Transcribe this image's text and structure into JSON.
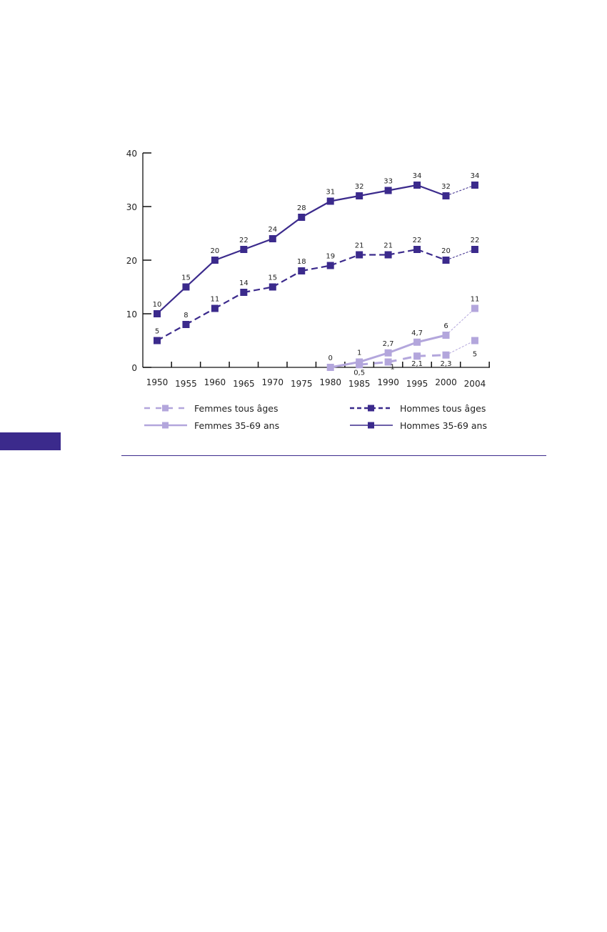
{
  "chart_data": {
    "type": "line",
    "title": "",
    "xlabel": "",
    "ylabel": "",
    "ylim": [
      0,
      40
    ],
    "yticks": [
      "0",
      "10",
      "20",
      "30",
      "40"
    ],
    "categories": [
      "1950",
      "1955",
      "1960",
      "1965",
      "1970",
      "1975",
      "1980",
      "1985",
      "1990",
      "1995",
      "2000",
      "2004"
    ],
    "grid": false,
    "legend_position": "bottom",
    "series": [
      {
        "name": "Hommes 35-69 ans",
        "style": "solid",
        "color": "#3b2a8c",
        "values": [
          10,
          15,
          20,
          22,
          24,
          28,
          31,
          32,
          33,
          34,
          32,
          34
        ],
        "labels": [
          "10",
          "15",
          "20",
          "22",
          "24",
          "28",
          "31",
          "32",
          "33",
          "34",
          "32",
          "34"
        ]
      },
      {
        "name": "Hommes tous âges",
        "style": "dashed",
        "color": "#3b2a8c",
        "values": [
          5,
          8,
          11,
          14,
          15,
          18,
          19,
          21,
          21,
          22,
          20,
          22
        ],
        "labels": [
          "5",
          "8",
          "11",
          "14",
          "15",
          "18",
          "19",
          "21",
          "21",
          "22",
          "20",
          "22"
        ]
      },
      {
        "name": "Femmes 35-69 ans",
        "style": "solid",
        "color": "#b3a6dc",
        "values": [
          null,
          null,
          null,
          null,
          null,
          null,
          0,
          1,
          2.7,
          4.7,
          6,
          11
        ],
        "labels": [
          null,
          null,
          null,
          null,
          null,
          null,
          "0",
          "1",
          "2,7",
          "4,7",
          "6",
          "11"
        ]
      },
      {
        "name": "Femmes tous âges",
        "style": "dashed",
        "color": "#b3a6dc",
        "values": [
          null,
          null,
          null,
          null,
          null,
          null,
          null,
          0.5,
          1,
          2.1,
          2.3,
          5
        ],
        "labels": [
          null,
          null,
          null,
          null,
          null,
          null,
          null,
          "0,5",
          "1",
          "2,1",
          "2,3",
          "5"
        ]
      }
    ],
    "legend": [
      "Femmes tous âges",
      "Hommes tous âges",
      "Femmes 35-69 ans",
      "Hommes 35-69 ans"
    ]
  }
}
